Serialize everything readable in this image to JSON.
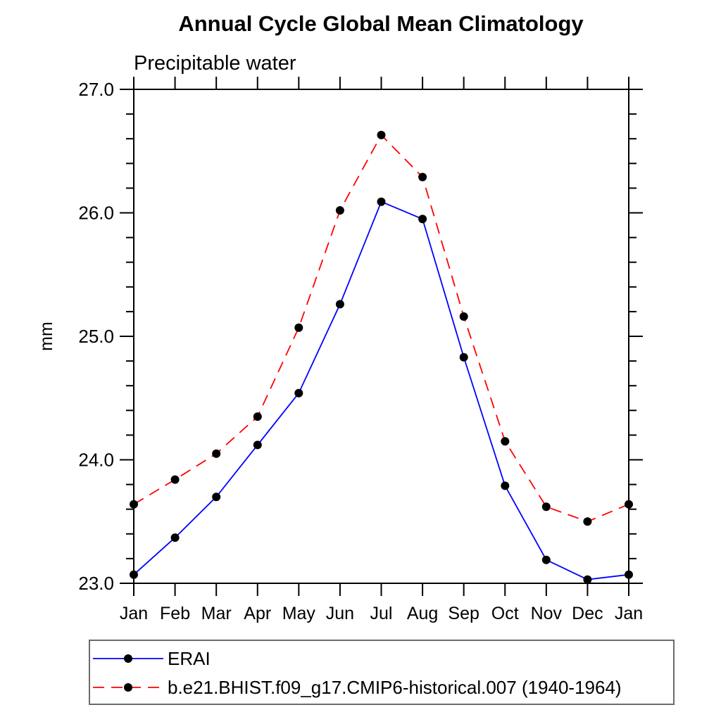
{
  "title": "Annual Cycle Global Mean Climatology",
  "subtitle": "Precipitable water",
  "chart_data": {
    "type": "line",
    "title": "Annual Cycle Global Mean Climatology",
    "subtitle": "Precipitable water",
    "xlabel": "",
    "ylabel": "mm",
    "categories": [
      "Jan",
      "Feb",
      "Mar",
      "Apr",
      "May",
      "Jun",
      "Jul",
      "Aug",
      "Sep",
      "Oct",
      "Nov",
      "Dec",
      "Jan"
    ],
    "ylim": [
      23.0,
      27.0
    ],
    "ytick_major_values": [
      23.0,
      24.0,
      25.0,
      26.0,
      27.0
    ],
    "ytick_major_labels": [
      "23.0",
      "24.0",
      "25.0",
      "26.0",
      "27.0"
    ],
    "ytick_minor_step": 0.2,
    "grid": false,
    "legend_position": "bottom-left-box",
    "frame_color": "#000000",
    "marker_color": "#000000",
    "series": [
      {
        "name": "ERAI",
        "color": "#0000ff",
        "style": "solid",
        "marker": "circle",
        "values": [
          23.07,
          23.37,
          23.7,
          24.12,
          24.54,
          25.26,
          26.09,
          25.95,
          24.83,
          23.79,
          23.19,
          23.03,
          23.07
        ]
      },
      {
        "name": "b.e21.BHIST.f09_g17.CMIP6-historical.007 (1940-1964)",
        "color": "#ff0000",
        "style": "dashed",
        "marker": "circle",
        "values": [
          23.64,
          23.84,
          24.05,
          24.35,
          25.07,
          26.02,
          26.63,
          26.29,
          25.16,
          24.15,
          23.62,
          23.5,
          23.64
        ]
      }
    ]
  }
}
